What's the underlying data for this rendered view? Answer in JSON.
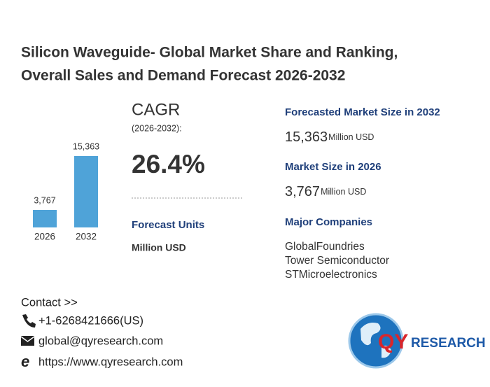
{
  "header": {
    "title": [
      "Silicon Waveguide- Global Market Share and Ranking,",
      "Overall Sales and Demand Forecast 2026-2032"
    ]
  },
  "chart_data": {
    "type": "bar",
    "categories": [
      "2026",
      "2032"
    ],
    "values": [
      3767,
      15363
    ],
    "value_labels": [
      "3,767",
      "15,363"
    ],
    "color": "#4fa3d8"
  },
  "cagr": {
    "label": "CAGR",
    "period": "(2026-2032):",
    "value": "26.4%"
  },
  "forecast_units": {
    "heading": "Forecast Units",
    "value": "Million USD"
  },
  "market": [
    {
      "heading": "Forecasted Market Size in 2032",
      "value": "15,363",
      "unit": "Million USD"
    },
    {
      "heading": "Market Size in 2026",
      "value": "3,767",
      "unit": "Million USD"
    }
  ],
  "companies": {
    "heading": "Major Companies",
    "items": [
      "GlobalFoundries",
      "Tower Semiconductor",
      "STMicroelectronics"
    ]
  },
  "contact": {
    "heading": "Contact >>",
    "phone": "+1-6268421666(US)",
    "email": "global@qyresearch.com",
    "web": "https://www.qyresearch.com"
  },
  "logo": {
    "mark": "QY",
    "text": "RESEARCH"
  }
}
